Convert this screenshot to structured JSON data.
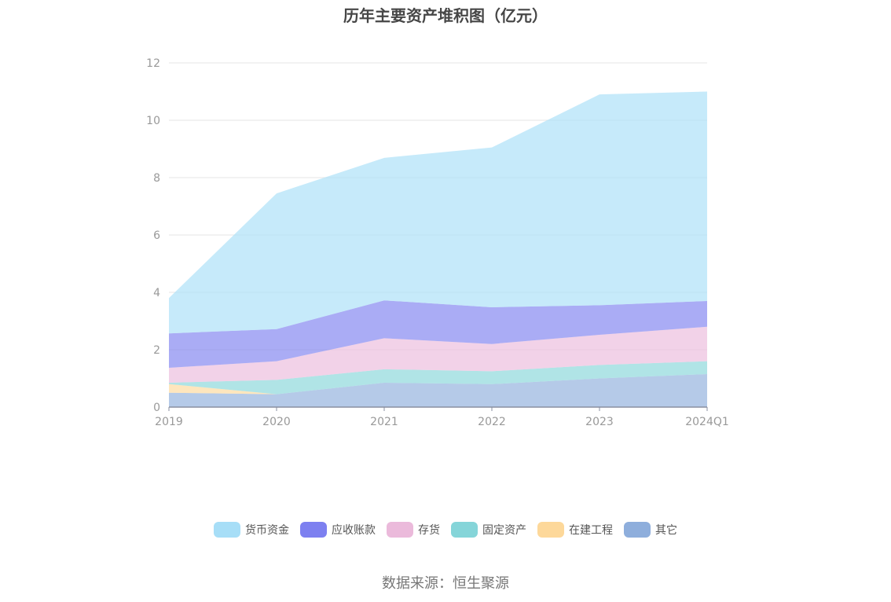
{
  "title": "历年主要资产堆积图（亿元）",
  "source": "数据来源：恒生聚源",
  "chart_data": {
    "type": "area",
    "stacked": true,
    "categories": [
      "2019",
      "2020",
      "2021",
      "2022",
      "2023",
      "2024Q1"
    ],
    "ylim": [
      0,
      12
    ],
    "yticks": [
      "0",
      "2",
      "4",
      "6",
      "8",
      "10",
      "12"
    ],
    "grid": true,
    "legend_position": "bottom",
    "series": [
      {
        "name": "其它",
        "color": "#8eaedc",
        "values": [
          0.5,
          0.45,
          0.85,
          0.8,
          1.0,
          1.15
        ]
      },
      {
        "name": "在建工程",
        "color": "#fdd89a",
        "values": [
          0.3,
          0.0,
          0.0,
          0.0,
          0.0,
          0.0
        ]
      },
      {
        "name": "固定资产",
        "color": "#85d5d9",
        "values": [
          0.05,
          0.5,
          0.47,
          0.45,
          0.47,
          0.45
        ]
      },
      {
        "name": "存货",
        "color": "#ebbadb",
        "values": [
          0.52,
          0.65,
          1.08,
          0.95,
          1.05,
          1.2
        ]
      },
      {
        "name": "应收账款",
        "color": "#7d80f0",
        "values": [
          1.2,
          1.12,
          1.32,
          1.28,
          1.03,
          0.9
        ]
      },
      {
        "name": "货币资金",
        "color": "#a7def7",
        "values": [
          1.23,
          4.73,
          4.97,
          5.57,
          7.35,
          7.3
        ]
      }
    ],
    "legend_order": [
      "货币资金",
      "应收账款",
      "存货",
      "固定资产",
      "在建工程",
      "其它"
    ]
  }
}
